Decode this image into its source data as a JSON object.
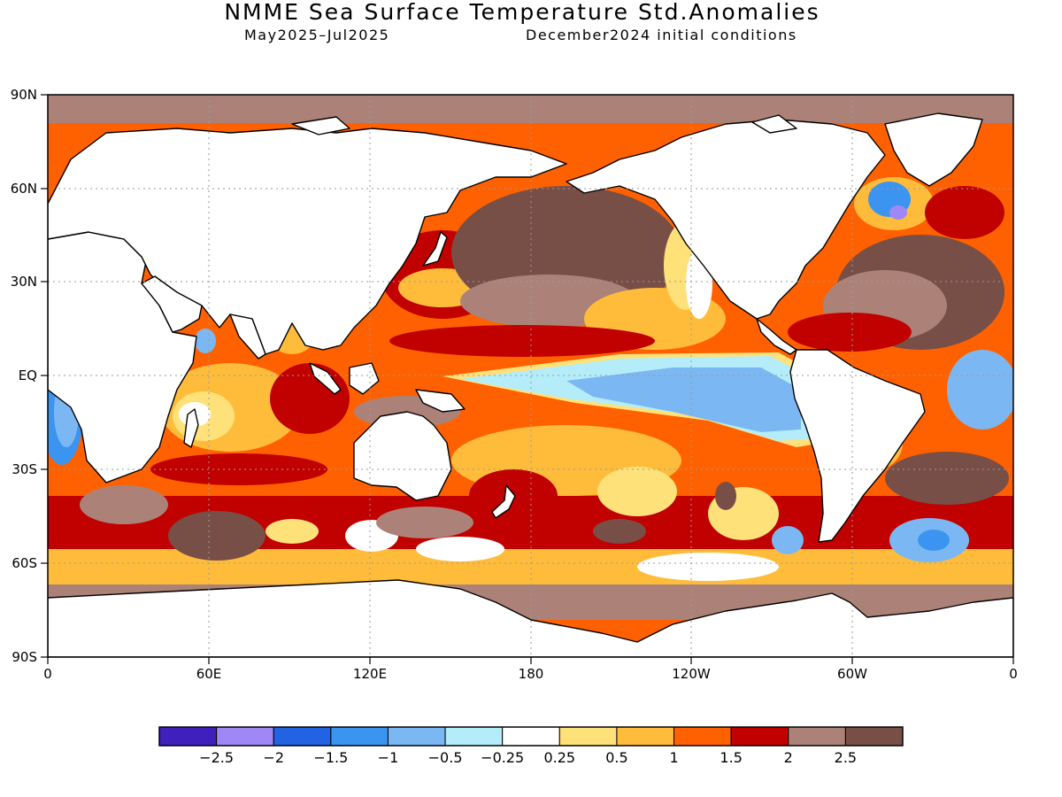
{
  "title": "NMME Sea Surface Temperature Std.Anomalies",
  "subtitle_period": "May2025–Jul2025",
  "subtitle_init": "December2024 initial conditions",
  "axes": {
    "x_ticks": [
      "0",
      "60E",
      "120E",
      "180",
      "120W",
      "60W",
      "0"
    ],
    "y_ticks": [
      "90N",
      "60N",
      "30N",
      "EQ",
      "30S",
      "60S",
      "90S"
    ]
  },
  "colors": {
    "land": "#ffffff",
    "frame": "#000000",
    "grid": "#9a9a9a"
  },
  "colorbar": {
    "bins": [
      {
        "color": "#3f20bd"
      },
      {
        "color": "#9f88f5"
      },
      {
        "color": "#2163e3"
      },
      {
        "color": "#3b95f0"
      },
      {
        "color": "#7bb8f3"
      },
      {
        "color": "#b4edf9"
      },
      {
        "color": "#ffffff"
      },
      {
        "color": "#ffe17a"
      },
      {
        "color": "#ffbc3b"
      },
      {
        "color": "#ff6100"
      },
      {
        "color": "#c10000"
      },
      {
        "color": "#ac8278"
      },
      {
        "color": "#774f47"
      }
    ],
    "labels": [
      "−2.5",
      "−2",
      "−1.5",
      "−1",
      "−0.5",
      "−0.25",
      "0.25",
      "0.5",
      "1",
      "1.5",
      "2",
      "2.5"
    ]
  }
}
